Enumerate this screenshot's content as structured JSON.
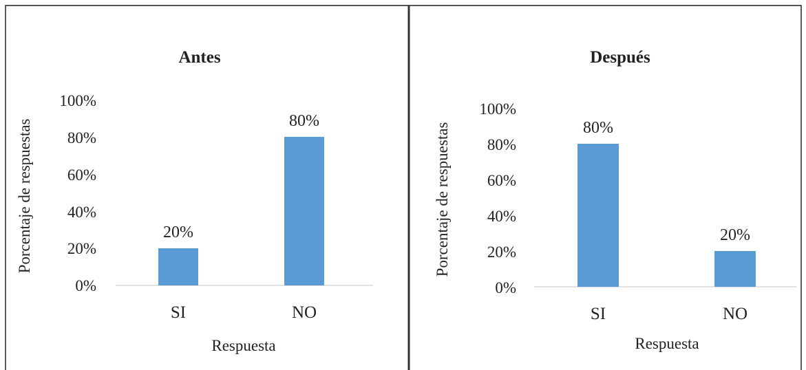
{
  "chart_data": [
    {
      "type": "bar",
      "title": "Antes",
      "xlabel": "Respuesta",
      "ylabel": "Porcentaje de respuestas",
      "categories": [
        "SI",
        "NO"
      ],
      "values": [
        20,
        80
      ],
      "data_labels": [
        "20%",
        "80%"
      ],
      "ylim": [
        0,
        100
      ],
      "yticks": [
        "0%",
        "20%",
        "40%",
        "60%",
        "80%",
        "100%"
      ],
      "grid": false,
      "legend": "none",
      "bar_color": "#5b9bd5"
    },
    {
      "type": "bar",
      "title": "Después",
      "xlabel": "Respuesta",
      "ylabel": "Porcentaje de respuestas",
      "categories": [
        "SI",
        "NO"
      ],
      "values": [
        80,
        20
      ],
      "data_labels": [
        "80%",
        "20%"
      ],
      "ylim": [
        0,
        100
      ],
      "yticks": [
        "0%",
        "20%",
        "40%",
        "60%",
        "80%",
        "100%"
      ],
      "grid": false,
      "legend": "none",
      "bar_color": "#5b9bd5"
    }
  ],
  "colors": {
    "frame": "#222222",
    "divider": "#333333",
    "axis": "#d9d9d9",
    "text": "#222222"
  }
}
